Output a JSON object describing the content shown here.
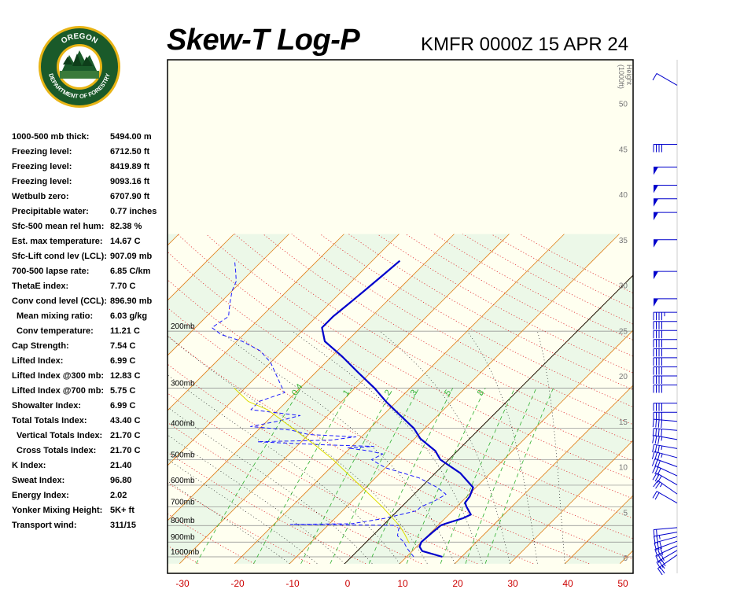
{
  "header": {
    "title": "Skew-T Log-P",
    "station_time": "KMFR 0000Z 15 APR 24"
  },
  "logo": {
    "top_text": "OREGON",
    "bottom_text": "DEPARTMENT OF FORESTRY"
  },
  "indices": [
    {
      "label": "1000-500 mb thick:",
      "value": "5494.00 m",
      "indent": false
    },
    {
      "label": "Freezing level:",
      "value": "6712.50 ft",
      "indent": false
    },
    {
      "label": "Freezing level:",
      "value": "8419.89 ft",
      "indent": false
    },
    {
      "label": "Freezing level:",
      "value": "9093.16 ft",
      "indent": false
    },
    {
      "label": "Wetbulb zero:",
      "value": "6707.90 ft",
      "indent": false
    },
    {
      "label": "Precipitable water:",
      "value": "0.77 inches",
      "indent": false
    },
    {
      "label": "Sfc-500 mean rel hum:",
      "value": "82.38 %",
      "indent": false
    },
    {
      "label": "Est. max temperature:",
      "value": "14.67 C",
      "indent": false
    },
    {
      "label": "Sfc-Lift cond lev (LCL):",
      "value": "907.09 mb",
      "indent": false
    },
    {
      "label": "700-500 lapse rate:",
      "value": "6.85 C/km",
      "indent": false
    },
    {
      "label": "ThetaE index:",
      "value": "7.70 C",
      "indent": false
    },
    {
      "label": "Conv cond level (CCL):",
      "value": "896.90 mb",
      "indent": false
    },
    {
      "label": "Mean mixing ratio:",
      "value": "6.03 g/kg",
      "indent": true
    },
    {
      "label": "Conv temperature:",
      "value": "11.21 C",
      "indent": true
    },
    {
      "label": "Cap Strength:",
      "value": "7.54 C",
      "indent": false
    },
    {
      "label": "Lifted Index:",
      "value": "6.99 C",
      "indent": false
    },
    {
      "label": "Lifted Index @300 mb:",
      "value": "12.83 C",
      "indent": false
    },
    {
      "label": "Lifted Index @700 mb:",
      "value": "5.75 C",
      "indent": false
    },
    {
      "label": "Showalter Index:",
      "value": "6.99 C",
      "indent": false
    },
    {
      "label": "Total Totals Index:",
      "value": "43.40 C",
      "indent": false
    },
    {
      "label": "Vertical Totals Index:",
      "value": "21.70 C",
      "indent": true
    },
    {
      "label": "Cross Totals Index:",
      "value": "21.70 C",
      "indent": true
    },
    {
      "label": "K Index:",
      "value": "21.40",
      "indent": false
    },
    {
      "label": "Sweat Index:",
      "value": "96.80",
      "indent": false
    },
    {
      "label": "Energy Index:",
      "value": "2.02",
      "indent": false
    },
    {
      "label": "Yonker Mixing Height:",
      "value": "5K+ ft",
      "indent": false
    },
    {
      "label": "Transport wind:",
      "value": "311/15",
      "indent": false
    }
  ],
  "chart_data": {
    "type": "line",
    "title": "Skew-T Log-P",
    "subtitle": "KMFR 0000Z 15 APR 24",
    "xlabel": "",
    "ylabel": "",
    "height_axis_label": [
      "Height",
      "(1000ft)"
    ],
    "x_ticks": [
      -30,
      -20,
      -10,
      0,
      10,
      20,
      30,
      40,
      50
    ],
    "pressure_labels": [
      "200mb",
      "300mb",
      "400mb",
      "500mb",
      "600mb",
      "700mb",
      "800mb",
      "900mb",
      "1000mb"
    ],
    "pressure_levels": [
      200,
      300,
      400,
      500,
      600,
      700,
      800,
      900,
      1000
    ],
    "height_ticks": [
      0,
      5,
      10,
      15,
      20,
      25,
      30,
      35,
      40,
      45,
      50
    ],
    "mixing_ratio_labels": [
      "0.4",
      "1",
      "2",
      "3",
      "5",
      "8"
    ],
    "colors": {
      "temperature": "#0000cc",
      "dewpoint": "#1a1aff",
      "parcel": "#dddd00",
      "isotherm": "#e0801a",
      "dry_adiabat": "#e03030",
      "moist_adiabat": "#000000",
      "mixing_ratio": "#30b030",
      "zero_isotherm": "#000000"
    },
    "series": [
      {
        "name": "Temperature",
        "points": [
          {
            "p": 1000,
            "t": 16.5
          },
          {
            "p": 960,
            "t": 11.8
          },
          {
            "p": 930,
            "t": 10.5
          },
          {
            "p": 900,
            "t": 10.0
          },
          {
            "p": 850,
            "t": 10.2
          },
          {
            "p": 800,
            "t": 10.5
          },
          {
            "p": 790,
            "t": 11.0
          },
          {
            "p": 760,
            "t": 13.2
          },
          {
            "p": 740,
            "t": 14.0
          },
          {
            "p": 700,
            "t": 11.8
          },
          {
            "p": 680,
            "t": 10.8
          },
          {
            "p": 650,
            "t": 10.5
          },
          {
            "p": 610,
            "t": 9.5
          },
          {
            "p": 550,
            "t": 4.5
          },
          {
            "p": 500,
            "t": -1.5
          },
          {
            "p": 470,
            "t": -4.0
          },
          {
            "p": 430,
            "t": -9.0
          },
          {
            "p": 400,
            "t": -12.0
          },
          {
            "p": 360,
            "t": -17.5
          },
          {
            "p": 330,
            "t": -22.0
          },
          {
            "p": 300,
            "t": -26.5
          },
          {
            "p": 270,
            "t": -32.0
          },
          {
            "p": 240,
            "t": -38.0
          },
          {
            "p": 215,
            "t": -44.0
          },
          {
            "p": 195,
            "t": -47.0
          },
          {
            "p": 180,
            "t": -47.0
          },
          {
            "p": 165,
            "t": -46.5
          },
          {
            "p": 150,
            "t": -46.0
          },
          {
            "p": 135,
            "t": -45.5
          },
          {
            "p": 121,
            "t": -45.0
          }
        ]
      },
      {
        "name": "Dewpoint",
        "points": [
          {
            "p": 1000,
            "t": 11.3
          },
          {
            "p": 940,
            "t": 8.5
          },
          {
            "p": 900,
            "t": 6.8
          },
          {
            "p": 860,
            "t": 4.5
          },
          {
            "p": 820,
            "t": 3.5
          },
          {
            "p": 800,
            "t": 3.2
          },
          {
            "p": 795,
            "t": -9.0
          },
          {
            "p": 793,
            "t": -17.0
          },
          {
            "p": 790,
            "t": -6.0
          },
          {
            "p": 760,
            "t": -1.0
          },
          {
            "p": 720,
            "t": 3.5
          },
          {
            "p": 700,
            "t": 3.5
          },
          {
            "p": 670,
            "t": 5.0
          },
          {
            "p": 640,
            "t": 5.8
          },
          {
            "p": 610,
            "t": 3.0
          },
          {
            "p": 570,
            "t": -2.0
          },
          {
            "p": 530,
            "t": -10.0
          },
          {
            "p": 500,
            "t": -14.0
          },
          {
            "p": 480,
            "t": -13.0
          },
          {
            "p": 470,
            "t": -16.0
          },
          {
            "p": 460,
            "t": -20.5
          },
          {
            "p": 455,
            "t": -16.0
          },
          {
            "p": 450,
            "t": -25.0
          },
          {
            "p": 440,
            "t": -38.0
          },
          {
            "p": 435,
            "t": -25.0
          },
          {
            "p": 425,
            "t": -21.0
          },
          {
            "p": 418,
            "t": -30.0
          },
          {
            "p": 405,
            "t": -34.0
          },
          {
            "p": 395,
            "t": -42.0
          },
          {
            "p": 380,
            "t": -38.0
          },
          {
            "p": 365,
            "t": -35.0
          },
          {
            "p": 350,
            "t": -45.0
          },
          {
            "p": 330,
            "t": -45.0
          },
          {
            "p": 310,
            "t": -42.0
          },
          {
            "p": 290,
            "t": -44.5
          },
          {
            "p": 250,
            "t": -50.0
          },
          {
            "p": 230,
            "t": -54.0
          },
          {
            "p": 215,
            "t": -59.0
          },
          {
            "p": 205,
            "t": -64.0
          },
          {
            "p": 195,
            "t": -67.0
          },
          {
            "p": 180,
            "t": -66.0
          },
          {
            "p": 165,
            "t": -68.0
          },
          {
            "p": 150,
            "t": -70.0
          },
          {
            "p": 140,
            "t": -71.0
          },
          {
            "p": 130,
            "t": -73.0
          },
          {
            "p": 121,
            "t": -75.0
          }
        ]
      },
      {
        "name": "Parcel",
        "points": [
          {
            "p": 907,
            "t": 8.0
          },
          {
            "p": 850,
            "t": 5.5
          },
          {
            "p": 800,
            "t": 3.0
          },
          {
            "p": 700,
            "t": -3.5
          },
          {
            "p": 600,
            "t": -11.5
          },
          {
            "p": 500,
            "t": -21.0
          },
          {
            "p": 450,
            "t": -27.0
          },
          {
            "p": 400,
            "t": -34.0
          },
          {
            "p": 350,
            "t": -42.0
          },
          {
            "p": 330,
            "t": -47.0
          },
          {
            "p": 300,
            "t": -52.0
          }
        ]
      }
    ],
    "winds": [
      {
        "h": 0.3,
        "dir": 235,
        "spd": 25
      },
      {
        "h": 0.8,
        "dir": 240,
        "spd": 30
      },
      {
        "h": 1.3,
        "dir": 245,
        "spd": 30
      },
      {
        "h": 1.8,
        "dir": 250,
        "spd": 30
      },
      {
        "h": 2.3,
        "dir": 255,
        "spd": 30
      },
      {
        "h": 2.8,
        "dir": 260,
        "spd": 25
      },
      {
        "h": 3.3,
        "dir": 265,
        "spd": 20
      },
      {
        "h": 6.0,
        "dir": 300,
        "spd": 20
      },
      {
        "h": 7.0,
        "dir": 305,
        "spd": 25
      },
      {
        "h": 8.0,
        "dir": 300,
        "spd": 30
      },
      {
        "h": 9.0,
        "dir": 295,
        "spd": 30
      },
      {
        "h": 10.0,
        "dir": 290,
        "spd": 30
      },
      {
        "h": 11.0,
        "dir": 285,
        "spd": 35
      },
      {
        "h": 12.0,
        "dir": 280,
        "spd": 35
      },
      {
        "h": 13.0,
        "dir": 280,
        "spd": 35
      },
      {
        "h": 14.0,
        "dir": 275,
        "spd": 40
      },
      {
        "h": 15.0,
        "dir": 275,
        "spd": 40
      },
      {
        "h": 16.0,
        "dir": 270,
        "spd": 40
      },
      {
        "h": 17.0,
        "dir": 270,
        "spd": 40
      },
      {
        "h": 19.0,
        "dir": 270,
        "spd": 40
      },
      {
        "h": 20.0,
        "dir": 270,
        "spd": 40
      },
      {
        "h": 21.0,
        "dir": 270,
        "spd": 40
      },
      {
        "h": 22.0,
        "dir": 270,
        "spd": 40
      },
      {
        "h": 23.0,
        "dir": 270,
        "spd": 40
      },
      {
        "h": 24.0,
        "dir": 270,
        "spd": 40
      },
      {
        "h": 25.0,
        "dir": 270,
        "spd": 40
      },
      {
        "h": 26.0,
        "dir": 270,
        "spd": 40
      },
      {
        "h": 27.0,
        "dir": 270,
        "spd": 45
      },
      {
        "h": 28.5,
        "dir": 270,
        "spd": 50
      },
      {
        "h": 31.5,
        "dir": 270,
        "spd": 50
      },
      {
        "h": 35.0,
        "dir": 270,
        "spd": 50
      },
      {
        "h": 38.0,
        "dir": 270,
        "spd": 50
      },
      {
        "h": 39.5,
        "dir": 270,
        "spd": 50
      },
      {
        "h": 41.0,
        "dir": 270,
        "spd": 50
      },
      {
        "h": 43.0,
        "dir": 270,
        "spd": 50
      },
      {
        "h": 45.5,
        "dir": 270,
        "spd": 40
      },
      {
        "h": 52.0,
        "dir": 300,
        "spd": 10
      }
    ]
  }
}
